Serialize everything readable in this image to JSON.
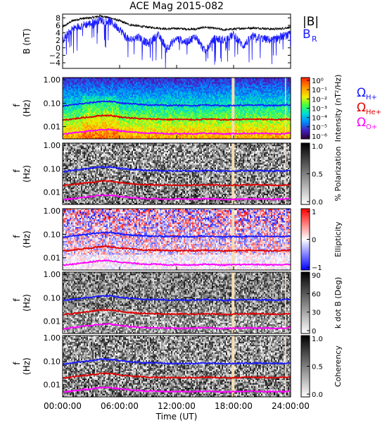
{
  "title": "ACE Mag 2015-082",
  "xaxis": {
    "label": "Time (UT)",
    "ticks": [
      "00:00:00",
      "06:00:00",
      "12:00:00",
      "18:00:00",
      "24:00:00"
    ],
    "range_hours": [
      0,
      24
    ]
  },
  "chart_data": [
    {
      "type": "line",
      "panel": "magnetic-field",
      "ylabel": "B (nT)",
      "yticks": [
        8,
        6,
        4,
        2,
        0,
        -2,
        -4
      ],
      "ylim": [
        -5.5,
        9
      ],
      "series": [
        {
          "name": "|B|",
          "color": "#000000",
          "x": [
            0,
            1,
            2,
            3,
            4,
            5,
            6,
            7,
            8,
            9,
            10,
            11,
            12,
            13,
            14,
            15,
            16,
            17,
            18,
            19,
            20,
            21,
            22,
            23,
            24
          ],
          "values": [
            5.5,
            7.2,
            7.8,
            8.0,
            8.5,
            8.0,
            7.2,
            6.2,
            5.8,
            5.5,
            5.3,
            5.0,
            5.2,
            5.0,
            5.0,
            5.5,
            5.2,
            4.8,
            5.0,
            5.2,
            5.3,
            5.2,
            5.0,
            5.1,
            5.5
          ]
        },
        {
          "name": "B_R",
          "color": "#1a1aff",
          "x": [
            0,
            1,
            2,
            3,
            4,
            5,
            6,
            7,
            8,
            9,
            10,
            11,
            12,
            13,
            14,
            15,
            16,
            17,
            18,
            19,
            20,
            21,
            22,
            23,
            24
          ],
          "values": [
            2.0,
            5.0,
            6.0,
            6.5,
            7.5,
            7.0,
            5.0,
            2.0,
            3.0,
            1.0,
            3.5,
            0.0,
            2.5,
            1.5,
            3.0,
            -1.0,
            2.5,
            2.0,
            3.5,
            0.5,
            3.0,
            2.5,
            2.0,
            3.0,
            3.5
          ]
        }
      ],
      "legend": [
        "|B|",
        "B_R"
      ],
      "legend_placement": "right"
    },
    {
      "type": "heatmap",
      "panel": "intensity",
      "ylabel": "f (Hz)",
      "yticks": [
        "1.00",
        "0.10",
        "0.01"
      ],
      "colorbar": {
        "label": "Intensity (nT²/Hz)",
        "ticks": [
          "10⁰",
          "10⁻¹",
          "10⁻²",
          "10⁻³",
          "10⁻⁴",
          "10⁻⁵",
          "10⁻⁶"
        ],
        "scale": "log"
      },
      "overlay_legend": [
        {
          "label": "Ω_H+",
          "color": "#1a1aff"
        },
        {
          "label": "Ω_He+",
          "color": "#e00000"
        },
        {
          "label": "Ω_O+",
          "color": "#ff00ff"
        }
      ]
    },
    {
      "type": "heatmap",
      "panel": "polarization",
      "ylabel": "f (Hz)",
      "yticks": [
        "1.00",
        "0.10",
        "0.01"
      ],
      "colorbar": {
        "label": "% Polarization",
        "ticks": [
          "1.0",
          "0.5",
          "0.0"
        ]
      }
    },
    {
      "type": "heatmap",
      "panel": "ellipticity",
      "ylabel": "f (Hz)",
      "yticks": [
        "1.00",
        "0.10",
        "0.01"
      ],
      "colorbar": {
        "label": "Ellipticity",
        "ticks": [
          "1",
          "0",
          "−1"
        ]
      }
    },
    {
      "type": "heatmap",
      "panel": "k-dot-b",
      "ylabel": "f (Hz)",
      "yticks": [
        "1.00",
        "0.10",
        "0.01"
      ],
      "colorbar": {
        "label": "k dot B (Deg)",
        "ticks": [
          "90",
          "60",
          "30",
          "0"
        ]
      }
    },
    {
      "type": "heatmap",
      "panel": "coherency",
      "ylabel": "f (Hz)",
      "yticks": [
        "1.00",
        "0.10",
        "0.01"
      ],
      "colorbar": {
        "label": "Coherency",
        "ticks": [
          "1.0",
          "0.5",
          "0.0"
        ]
      }
    }
  ],
  "gyrofrequency_lines": [
    {
      "name": "H+",
      "color": "#1a1aff",
      "x": [
        0,
        1,
        2,
        3,
        4,
        5,
        6,
        7,
        8,
        9,
        10,
        11,
        12,
        13,
        14,
        15,
        16,
        17,
        18,
        19,
        20,
        21,
        22,
        23,
        24
      ],
      "values": [
        0.075,
        0.085,
        0.095,
        0.105,
        0.12,
        0.12,
        0.105,
        0.095,
        0.09,
        0.085,
        0.085,
        0.08,
        0.082,
        0.08,
        0.08,
        0.085,
        0.082,
        0.078,
        0.08,
        0.082,
        0.083,
        0.082,
        0.08,
        0.081,
        0.085
      ]
    },
    {
      "name": "He+",
      "color": "#e00000",
      "x": [
        0,
        1,
        2,
        3,
        4,
        5,
        6,
        7,
        8,
        9,
        10,
        11,
        12,
        13,
        14,
        15,
        16,
        17,
        18,
        19,
        20,
        21,
        22,
        23,
        24
      ],
      "values": [
        0.019,
        0.021,
        0.024,
        0.026,
        0.03,
        0.03,
        0.026,
        0.024,
        0.022,
        0.021,
        0.021,
        0.02,
        0.0205,
        0.02,
        0.02,
        0.021,
        0.0205,
        0.0195,
        0.02,
        0.0205,
        0.0208,
        0.0205,
        0.02,
        0.0202,
        0.021
      ]
    },
    {
      "name": "O+",
      "color": "#ff00ff",
      "x": [
        0,
        1,
        2,
        3,
        4,
        5,
        6,
        7,
        8,
        9,
        10,
        11,
        12,
        13,
        14,
        15,
        16,
        17,
        18,
        19,
        20,
        21,
        22,
        23,
        24
      ],
      "values": [
        0.0047,
        0.0053,
        0.006,
        0.0066,
        0.0075,
        0.0075,
        0.0066,
        0.006,
        0.0056,
        0.0053,
        0.0053,
        0.005,
        0.0051,
        0.005,
        0.005,
        0.0053,
        0.0051,
        0.0049,
        0.005,
        0.0051,
        0.0052,
        0.0051,
        0.005,
        0.005,
        0.0053
      ]
    }
  ],
  "data_gap_hours": 17.8
}
